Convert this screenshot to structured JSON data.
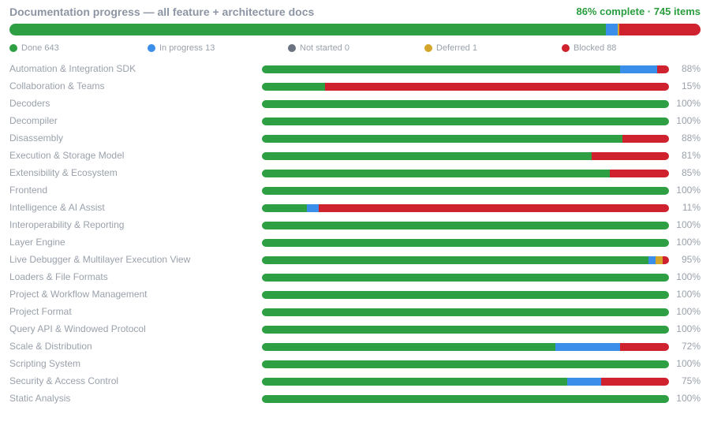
{
  "header": {
    "title": "Documentation progress — all feature + architecture docs",
    "summary": "86% complete · 745 items"
  },
  "colors": {
    "done": "#2ea043",
    "in_progress": "#3b8eea",
    "not_started": "#6b7280",
    "deferred": "#d4a72c",
    "blocked": "#cf222e"
  },
  "overall": {
    "done": 643,
    "in_progress": 13,
    "not_started": 0,
    "deferred": 1,
    "blocked": 88,
    "total": 745
  },
  "legend": [
    {
      "key": "done",
      "label": "Done 643"
    },
    {
      "key": "in_progress",
      "label": "In progress 13"
    },
    {
      "key": "not_started",
      "label": "Not started 0"
    },
    {
      "key": "deferred",
      "label": "Deferred 1"
    },
    {
      "key": "blocked",
      "label": "Blocked 88"
    }
  ],
  "rows": [
    {
      "label": "Automation & Integration SDK",
      "pct": "88%",
      "done": 0.88,
      "in_progress": 0.09,
      "deferred": 0,
      "blocked": 0.03
    },
    {
      "label": "Collaboration & Teams",
      "pct": "15%",
      "done": 0.155,
      "in_progress": 0,
      "deferred": 0,
      "blocked": 0.845
    },
    {
      "label": "Decoders",
      "pct": "100%",
      "done": 1,
      "in_progress": 0,
      "deferred": 0,
      "blocked": 0
    },
    {
      "label": "Decompiler",
      "pct": "100%",
      "done": 1,
      "in_progress": 0,
      "deferred": 0,
      "blocked": 0
    },
    {
      "label": "Disassembly",
      "pct": "88%",
      "done": 0.885,
      "in_progress": 0,
      "deferred": 0,
      "blocked": 0.115
    },
    {
      "label": "Execution & Storage Model",
      "pct": "81%",
      "done": 0.81,
      "in_progress": 0,
      "deferred": 0,
      "blocked": 0.19
    },
    {
      "label": "Extensibility & Ecosystem",
      "pct": "85%",
      "done": 0.855,
      "in_progress": 0,
      "deferred": 0,
      "blocked": 0.145
    },
    {
      "label": "Frontend",
      "pct": "100%",
      "done": 1,
      "in_progress": 0,
      "deferred": 0,
      "blocked": 0
    },
    {
      "label": "Intelligence & AI Assist",
      "pct": "11%",
      "done": 0.11,
      "in_progress": 0.03,
      "deferred": 0,
      "blocked": 0.86
    },
    {
      "label": "Interoperability & Reporting",
      "pct": "100%",
      "done": 1,
      "in_progress": 0,
      "deferred": 0,
      "blocked": 0
    },
    {
      "label": "Layer Engine",
      "pct": "100%",
      "done": 1,
      "in_progress": 0,
      "deferred": 0,
      "blocked": 0
    },
    {
      "label": "Live Debugger & Multilayer Execution View",
      "pct": "95%",
      "done": 0.95,
      "in_progress": 0.017,
      "deferred": 0.017,
      "blocked": 0.016
    },
    {
      "label": "Loaders & File Formats",
      "pct": "100%",
      "done": 1,
      "in_progress": 0,
      "deferred": 0,
      "blocked": 0
    },
    {
      "label": "Project & Workflow Management",
      "pct": "100%",
      "done": 1,
      "in_progress": 0,
      "deferred": 0,
      "blocked": 0
    },
    {
      "label": "Project Format",
      "pct": "100%",
      "done": 1,
      "in_progress": 0,
      "deferred": 0,
      "blocked": 0
    },
    {
      "label": "Query API & Windowed Protocol",
      "pct": "100%",
      "done": 1,
      "in_progress": 0,
      "deferred": 0,
      "blocked": 0
    },
    {
      "label": "Scale & Distribution",
      "pct": "72%",
      "done": 0.72,
      "in_progress": 0.16,
      "deferred": 0,
      "blocked": 0.12
    },
    {
      "label": "Scripting System",
      "pct": "100%",
      "done": 1,
      "in_progress": 0,
      "deferred": 0,
      "blocked": 0
    },
    {
      "label": "Security & Access Control",
      "pct": "75%",
      "done": 0.75,
      "in_progress": 0.083,
      "deferred": 0,
      "blocked": 0.167
    },
    {
      "label": "Static Analysis",
      "pct": "100%",
      "done": 1,
      "in_progress": 0,
      "deferred": 0,
      "blocked": 0
    }
  ]
}
